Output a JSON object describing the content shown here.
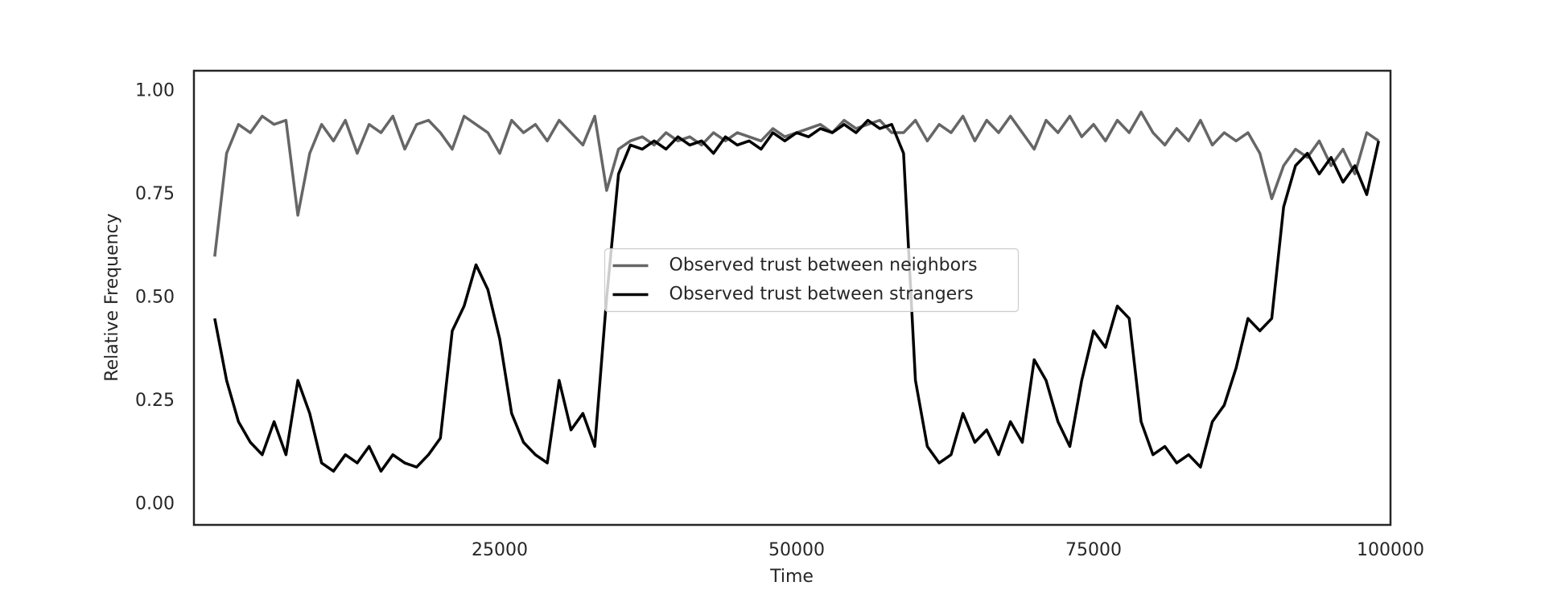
{
  "chart_data": {
    "type": "line",
    "xlabel": "Time",
    "ylabel": "Relative Frequency",
    "x": [
      1000,
      2000,
      3000,
      4000,
      5000,
      6000,
      7000,
      8000,
      9000,
      10000,
      11000,
      12000,
      13000,
      14000,
      15000,
      16000,
      17000,
      18000,
      19000,
      20000,
      21000,
      22000,
      23000,
      24000,
      25000,
      26000,
      27000,
      28000,
      29000,
      30000,
      31000,
      32000,
      33000,
      34000,
      35000,
      36000,
      37000,
      38000,
      39000,
      40000,
      41000,
      42000,
      43000,
      44000,
      45000,
      46000,
      47000,
      48000,
      49000,
      50000,
      51000,
      52000,
      53000,
      54000,
      55000,
      56000,
      57000,
      58000,
      59000,
      60000,
      61000,
      62000,
      63000,
      64000,
      65000,
      66000,
      67000,
      68000,
      69000,
      70000,
      71000,
      72000,
      73000,
      74000,
      75000,
      76000,
      77000,
      78000,
      79000,
      80000,
      81000,
      82000,
      83000,
      84000,
      85000,
      86000,
      87000,
      88000,
      89000,
      90000,
      91000,
      92000,
      93000,
      94000,
      95000,
      96000,
      97000,
      98000,
      99000
    ],
    "series": [
      {
        "name": "Observed trust between neighbors",
        "color": "#666666",
        "values": [
          0.6,
          0.85,
          0.92,
          0.9,
          0.94,
          0.92,
          0.93,
          0.7,
          0.85,
          0.92,
          0.88,
          0.93,
          0.85,
          0.92,
          0.9,
          0.94,
          0.86,
          0.92,
          0.93,
          0.9,
          0.86,
          0.94,
          0.92,
          0.9,
          0.85,
          0.93,
          0.9,
          0.92,
          0.88,
          0.93,
          0.9,
          0.87,
          0.94,
          0.76,
          0.86,
          0.88,
          0.89,
          0.87,
          0.9,
          0.88,
          0.89,
          0.87,
          0.9,
          0.88,
          0.9,
          0.89,
          0.88,
          0.91,
          0.89,
          0.9,
          0.91,
          0.92,
          0.9,
          0.93,
          0.91,
          0.92,
          0.93,
          0.9,
          0.9,
          0.93,
          0.88,
          0.92,
          0.9,
          0.94,
          0.88,
          0.93,
          0.9,
          0.94,
          0.9,
          0.86,
          0.93,
          0.9,
          0.94,
          0.89,
          0.92,
          0.88,
          0.93,
          0.9,
          0.95,
          0.9,
          0.87,
          0.91,
          0.88,
          0.93,
          0.87,
          0.9,
          0.88,
          0.9,
          0.85,
          0.74,
          0.82,
          0.86,
          0.84,
          0.88,
          0.82,
          0.86,
          0.8,
          0.9,
          0.88
        ]
      },
      {
        "name": "Observed trust between strangers",
        "color": "#000000",
        "values": [
          0.45,
          0.3,
          0.2,
          0.15,
          0.12,
          0.2,
          0.12,
          0.3,
          0.22,
          0.1,
          0.08,
          0.12,
          0.1,
          0.14,
          0.08,
          0.12,
          0.1,
          0.09,
          0.12,
          0.16,
          0.42,
          0.48,
          0.58,
          0.52,
          0.4,
          0.22,
          0.15,
          0.12,
          0.1,
          0.3,
          0.18,
          0.22,
          0.14,
          0.5,
          0.8,
          0.87,
          0.86,
          0.88,
          0.86,
          0.89,
          0.87,
          0.88,
          0.85,
          0.89,
          0.87,
          0.88,
          0.86,
          0.9,
          0.88,
          0.9,
          0.89,
          0.91,
          0.9,
          0.92,
          0.9,
          0.93,
          0.91,
          0.92,
          0.85,
          0.3,
          0.14,
          0.1,
          0.12,
          0.22,
          0.15,
          0.18,
          0.12,
          0.2,
          0.15,
          0.35,
          0.3,
          0.2,
          0.14,
          0.3,
          0.42,
          0.38,
          0.48,
          0.45,
          0.2,
          0.12,
          0.14,
          0.1,
          0.12,
          0.09,
          0.2,
          0.24,
          0.33,
          0.45,
          0.42,
          0.45,
          0.72,
          0.82,
          0.85,
          0.8,
          0.84,
          0.78,
          0.82,
          0.75,
          0.88
        ]
      }
    ],
    "xlim": [
      -750,
      100000
    ],
    "xticks": [
      25000,
      50000,
      75000,
      100000
    ],
    "ylim": [
      -0.05,
      1.05
    ],
    "yticks": [
      {
        "value": 0,
        "label": "0.00"
      },
      {
        "value": 0.25,
        "label": "0.25"
      },
      {
        "value": 0.5,
        "label": "0.50"
      },
      {
        "value": 0.75,
        "label": "0.75"
      },
      {
        "value": 1,
        "label": "1.00"
      }
    ],
    "grid": false,
    "legend": "center"
  }
}
